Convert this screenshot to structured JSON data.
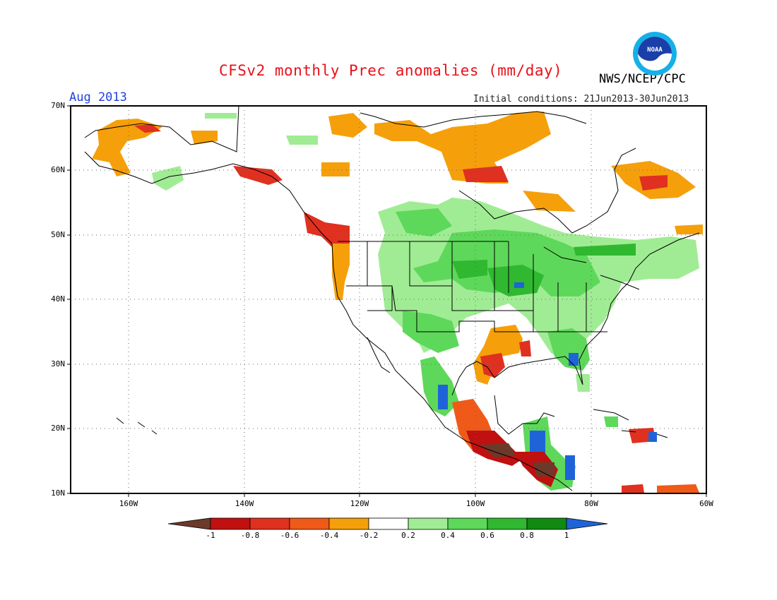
{
  "header": {
    "title": "CFSv2 monthly Prec anomalies (mm/day)",
    "month": "Aug 2013",
    "initial_conditions": "Initial conditions: 21Jun2013-30Jun2013",
    "agency": "NWS/NCEP/CPC",
    "logo_text": "NOAA"
  },
  "map": {
    "lat_labels": [
      "70N",
      "60N",
      "50N",
      "40N",
      "30N",
      "20N",
      "10N"
    ],
    "lon_labels": [
      "160W",
      "140W",
      "120W",
      "100W",
      "80W",
      "60W"
    ],
    "extent": {
      "lon_min": -170,
      "lon_max": -60,
      "lat_min": 10,
      "lat_max": 70
    },
    "grid": "dotted"
  },
  "colorbar": {
    "labels": [
      "-1",
      "-0.8",
      "-0.6",
      "-0.4",
      "-0.2",
      "0.2",
      "0.4",
      "0.6",
      "0.8",
      "1"
    ],
    "colors": {
      "lt_-1": "#6b3a2a",
      "-1_-0.8": "#c01010",
      "-0.8_-0.6": "#e03020",
      "-0.6_-0.4": "#f05a18",
      "-0.4_-0.2": "#f5a00a",
      "-0.2_0.2": "#ffffff",
      "0.2_0.4": "#a0ec94",
      "0.4_0.6": "#5ed85a",
      "0.6_0.8": "#30b830",
      "0.8_1": "#108a10",
      "gt_1": "#1e64d8"
    }
  }
}
